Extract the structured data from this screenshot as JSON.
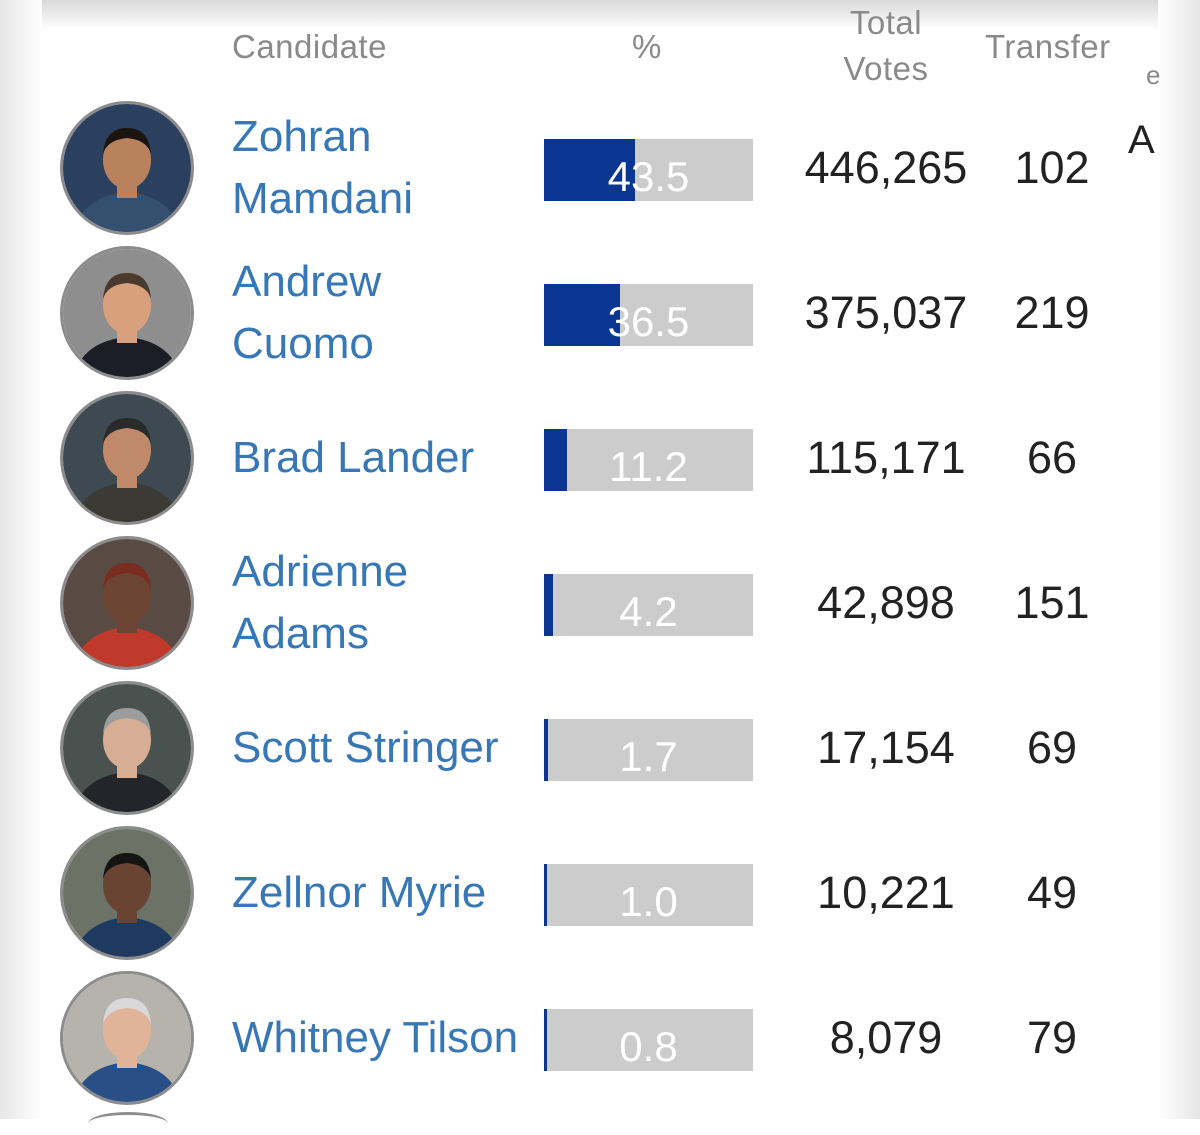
{
  "header": {
    "candidate": "Candidate",
    "percent": "%",
    "total_votes_line1": "Total",
    "total_votes_line2": "Votes",
    "transfer": "Transfer",
    "cutoff_col": "e"
  },
  "cutoff_letter": "A",
  "colors": {
    "name_link": "#3877b5",
    "bar_fill": "#0a3590",
    "bar_track": "#cccccc"
  },
  "candidates": [
    {
      "name": "Zohran Mamdani",
      "pct": "43.5",
      "votes": "446,265",
      "transfer": "102",
      "avatar_icon": "candidate-photo"
    },
    {
      "name": "Andrew Cuomo",
      "pct": "36.5",
      "votes": "375,037",
      "transfer": "219",
      "avatar_icon": "candidate-photo"
    },
    {
      "name": "Brad Lander",
      "pct": "11.2",
      "votes": "115,171",
      "transfer": "66",
      "avatar_icon": "candidate-photo"
    },
    {
      "name": "Adrienne Adams",
      "pct": "4.2",
      "votes": "42,898",
      "transfer": "151",
      "avatar_icon": "candidate-photo"
    },
    {
      "name": "Scott Stringer",
      "pct": "1.7",
      "votes": "17,154",
      "transfer": "69",
      "avatar_icon": "candidate-photo"
    },
    {
      "name": "Zellnor Myrie",
      "pct": "1.0",
      "votes": "10,221",
      "transfer": "49",
      "avatar_icon": "candidate-photo"
    },
    {
      "name": "Whitney Tilson",
      "pct": "0.8",
      "votes": "8,079",
      "transfer": "79",
      "avatar_icon": "candidate-photo"
    }
  ]
}
